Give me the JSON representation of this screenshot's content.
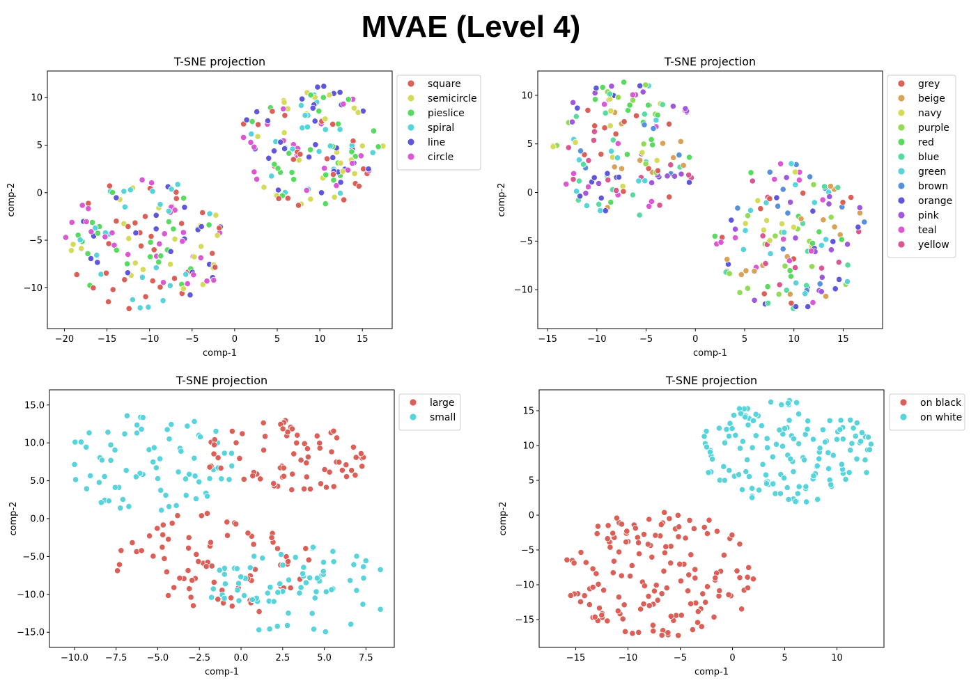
{
  "figure_title": "MVAE (Level 4)",
  "chart_data": [
    {
      "type": "scatter",
      "title": "T-SNE projection",
      "xlabel": "comp-1",
      "ylabel": "comp-2",
      "xlim": [
        -22,
        18.5
      ],
      "ylim": [
        -14.3,
        12.8
      ],
      "xticks": [
        -20,
        -15,
        -10,
        -5,
        0,
        5,
        10,
        15
      ],
      "yticks": [
        -10,
        -5,
        0,
        5,
        10
      ],
      "legend_position": "outside-right-top",
      "series": [
        {
          "name": "square",
          "color": "#db5f57"
        },
        {
          "name": "semicircle",
          "color": "#d3db57"
        },
        {
          "name": "pieslice",
          "color": "#57db5f"
        },
        {
          "name": "spiral",
          "color": "#57d3db"
        },
        {
          "name": "line",
          "color": "#5f57db"
        },
        {
          "name": "circle",
          "color": "#db57d3"
        }
      ],
      "clusters": [
        {
          "cx": 9.0,
          "cy": 5.0,
          "rx": 8.5,
          "ry": 6.5,
          "n": 150
        },
        {
          "cx": -10.5,
          "cy": -5.5,
          "rx": 9.5,
          "ry": 7.0,
          "n": 150
        }
      ]
    },
    {
      "type": "scatter",
      "title": "T-SNE projection",
      "xlabel": "comp-1",
      "ylabel": "comp-2",
      "xlim": [
        -16,
        19
      ],
      "ylim": [
        -14,
        12.5
      ],
      "xticks": [
        -15,
        -10,
        -5,
        0,
        5,
        10,
        15
      ],
      "yticks": [
        -10,
        -5,
        0,
        5,
        10
      ],
      "legend_position": "outside-right-top",
      "series": [
        {
          "name": "grey",
          "color": "#db5f57"
        },
        {
          "name": "beige",
          "color": "#dba157"
        },
        {
          "name": "navy",
          "color": "#d3db57"
        },
        {
          "name": "purple",
          "color": "#91db57"
        },
        {
          "name": "red",
          "color": "#57db5f"
        },
        {
          "name": "blue",
          "color": "#57dba1"
        },
        {
          "name": "green",
          "color": "#57d3db"
        },
        {
          "name": "brown",
          "color": "#5791db"
        },
        {
          "name": "orange",
          "color": "#5f57db"
        },
        {
          "name": "pink",
          "color": "#a157db"
        },
        {
          "name": "teal",
          "color": "#db57d3"
        },
        {
          "name": "yellow",
          "color": "#db5791"
        }
      ],
      "clusters": [
        {
          "cx": -7.0,
          "cy": 4.5,
          "rx": 7.5,
          "ry": 7.0,
          "n": 150
        },
        {
          "cx": 9.5,
          "cy": -4.5,
          "rx": 8.0,
          "ry": 7.5,
          "n": 150
        }
      ]
    },
    {
      "type": "scatter",
      "title": "T-SNE projection",
      "xlabel": "comp-1",
      "ylabel": "comp-2",
      "xlim": [
        -11.5,
        9.2
      ],
      "ylim": [
        -17,
        17
      ],
      "xticks": [
        -10.0,
        -7.5,
        -5.0,
        -2.5,
        0.0,
        2.5,
        5.0,
        7.5
      ],
      "yticks": [
        -15,
        -10,
        -5,
        0,
        5,
        10,
        15
      ],
      "tick_format": "1dp",
      "legend_position": "outside-right-top",
      "series": [
        {
          "name": "large",
          "color": "#db5f57"
        },
        {
          "name": "small",
          "color": "#57d3db"
        }
      ],
      "clusters": [
        {
          "series": 1,
          "cx": -5.5,
          "cy": 7.5,
          "rx": 5.3,
          "ry": 6.5,
          "n": 75
        },
        {
          "series": 0,
          "cx": 2.5,
          "cy": 8.0,
          "rx": 5.0,
          "ry": 5.0,
          "n": 75
        },
        {
          "series": 0,
          "cx": -1.5,
          "cy": -6.0,
          "rx": 6.0,
          "ry": 7.0,
          "n": 75
        },
        {
          "series": 1,
          "cx": 3.5,
          "cy": -9.5,
          "rx": 5.5,
          "ry": 6.0,
          "n": 75
        }
      ]
    },
    {
      "type": "scatter",
      "title": "T-SNE projection",
      "xlabel": "comp-1",
      "ylabel": "comp-2",
      "xlim": [
        -18.5,
        14.5
      ],
      "ylim": [
        -19,
        18
      ],
      "xticks": [
        -15,
        -10,
        -5,
        0,
        5,
        10
      ],
      "yticks": [
        -15,
        -10,
        -5,
        0,
        5,
        10,
        15
      ],
      "legend_position": "outside-right-top",
      "series": [
        {
          "name": "on black",
          "color": "#db5f57"
        },
        {
          "name": "on white",
          "color": "#57d3db"
        }
      ],
      "clusters": [
        {
          "series": 0,
          "cx": -7.0,
          "cy": -8.5,
          "rx": 9.5,
          "ry": 9.0,
          "n": 150
        },
        {
          "series": 1,
          "cx": 5.0,
          "cy": 9.0,
          "rx": 8.5,
          "ry": 7.5,
          "n": 150
        }
      ]
    }
  ]
}
